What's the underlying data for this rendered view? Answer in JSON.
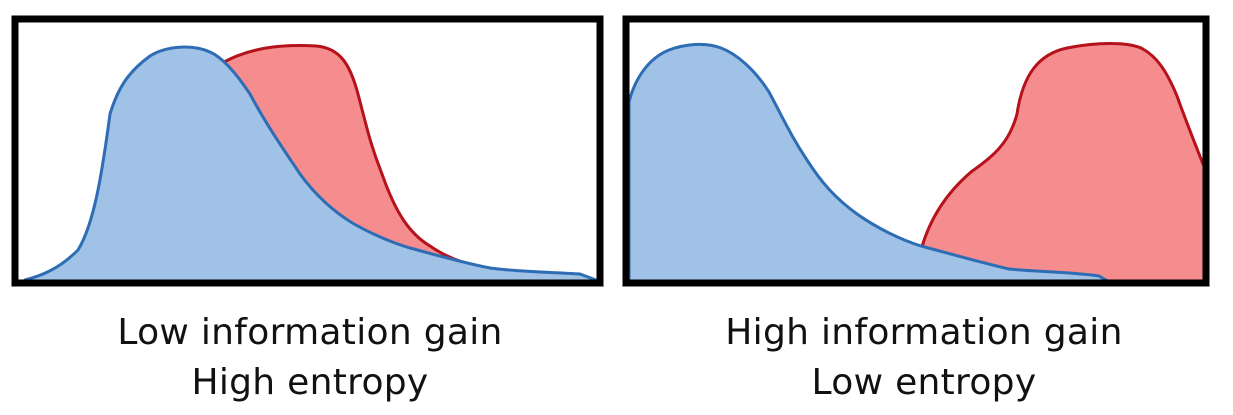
{
  "panels": [
    {
      "caption_line1": "Low information gain",
      "caption_line2": "High entropy"
    },
    {
      "caption_line1": "High information gain",
      "caption_line2": "Low entropy"
    }
  ],
  "colors": {
    "blue_fill": "#9fc2e6",
    "blue_stroke": "#2e6db4",
    "red_fill": "#f58d8f",
    "red_stroke": "#b5121b",
    "frame": "#000000"
  }
}
